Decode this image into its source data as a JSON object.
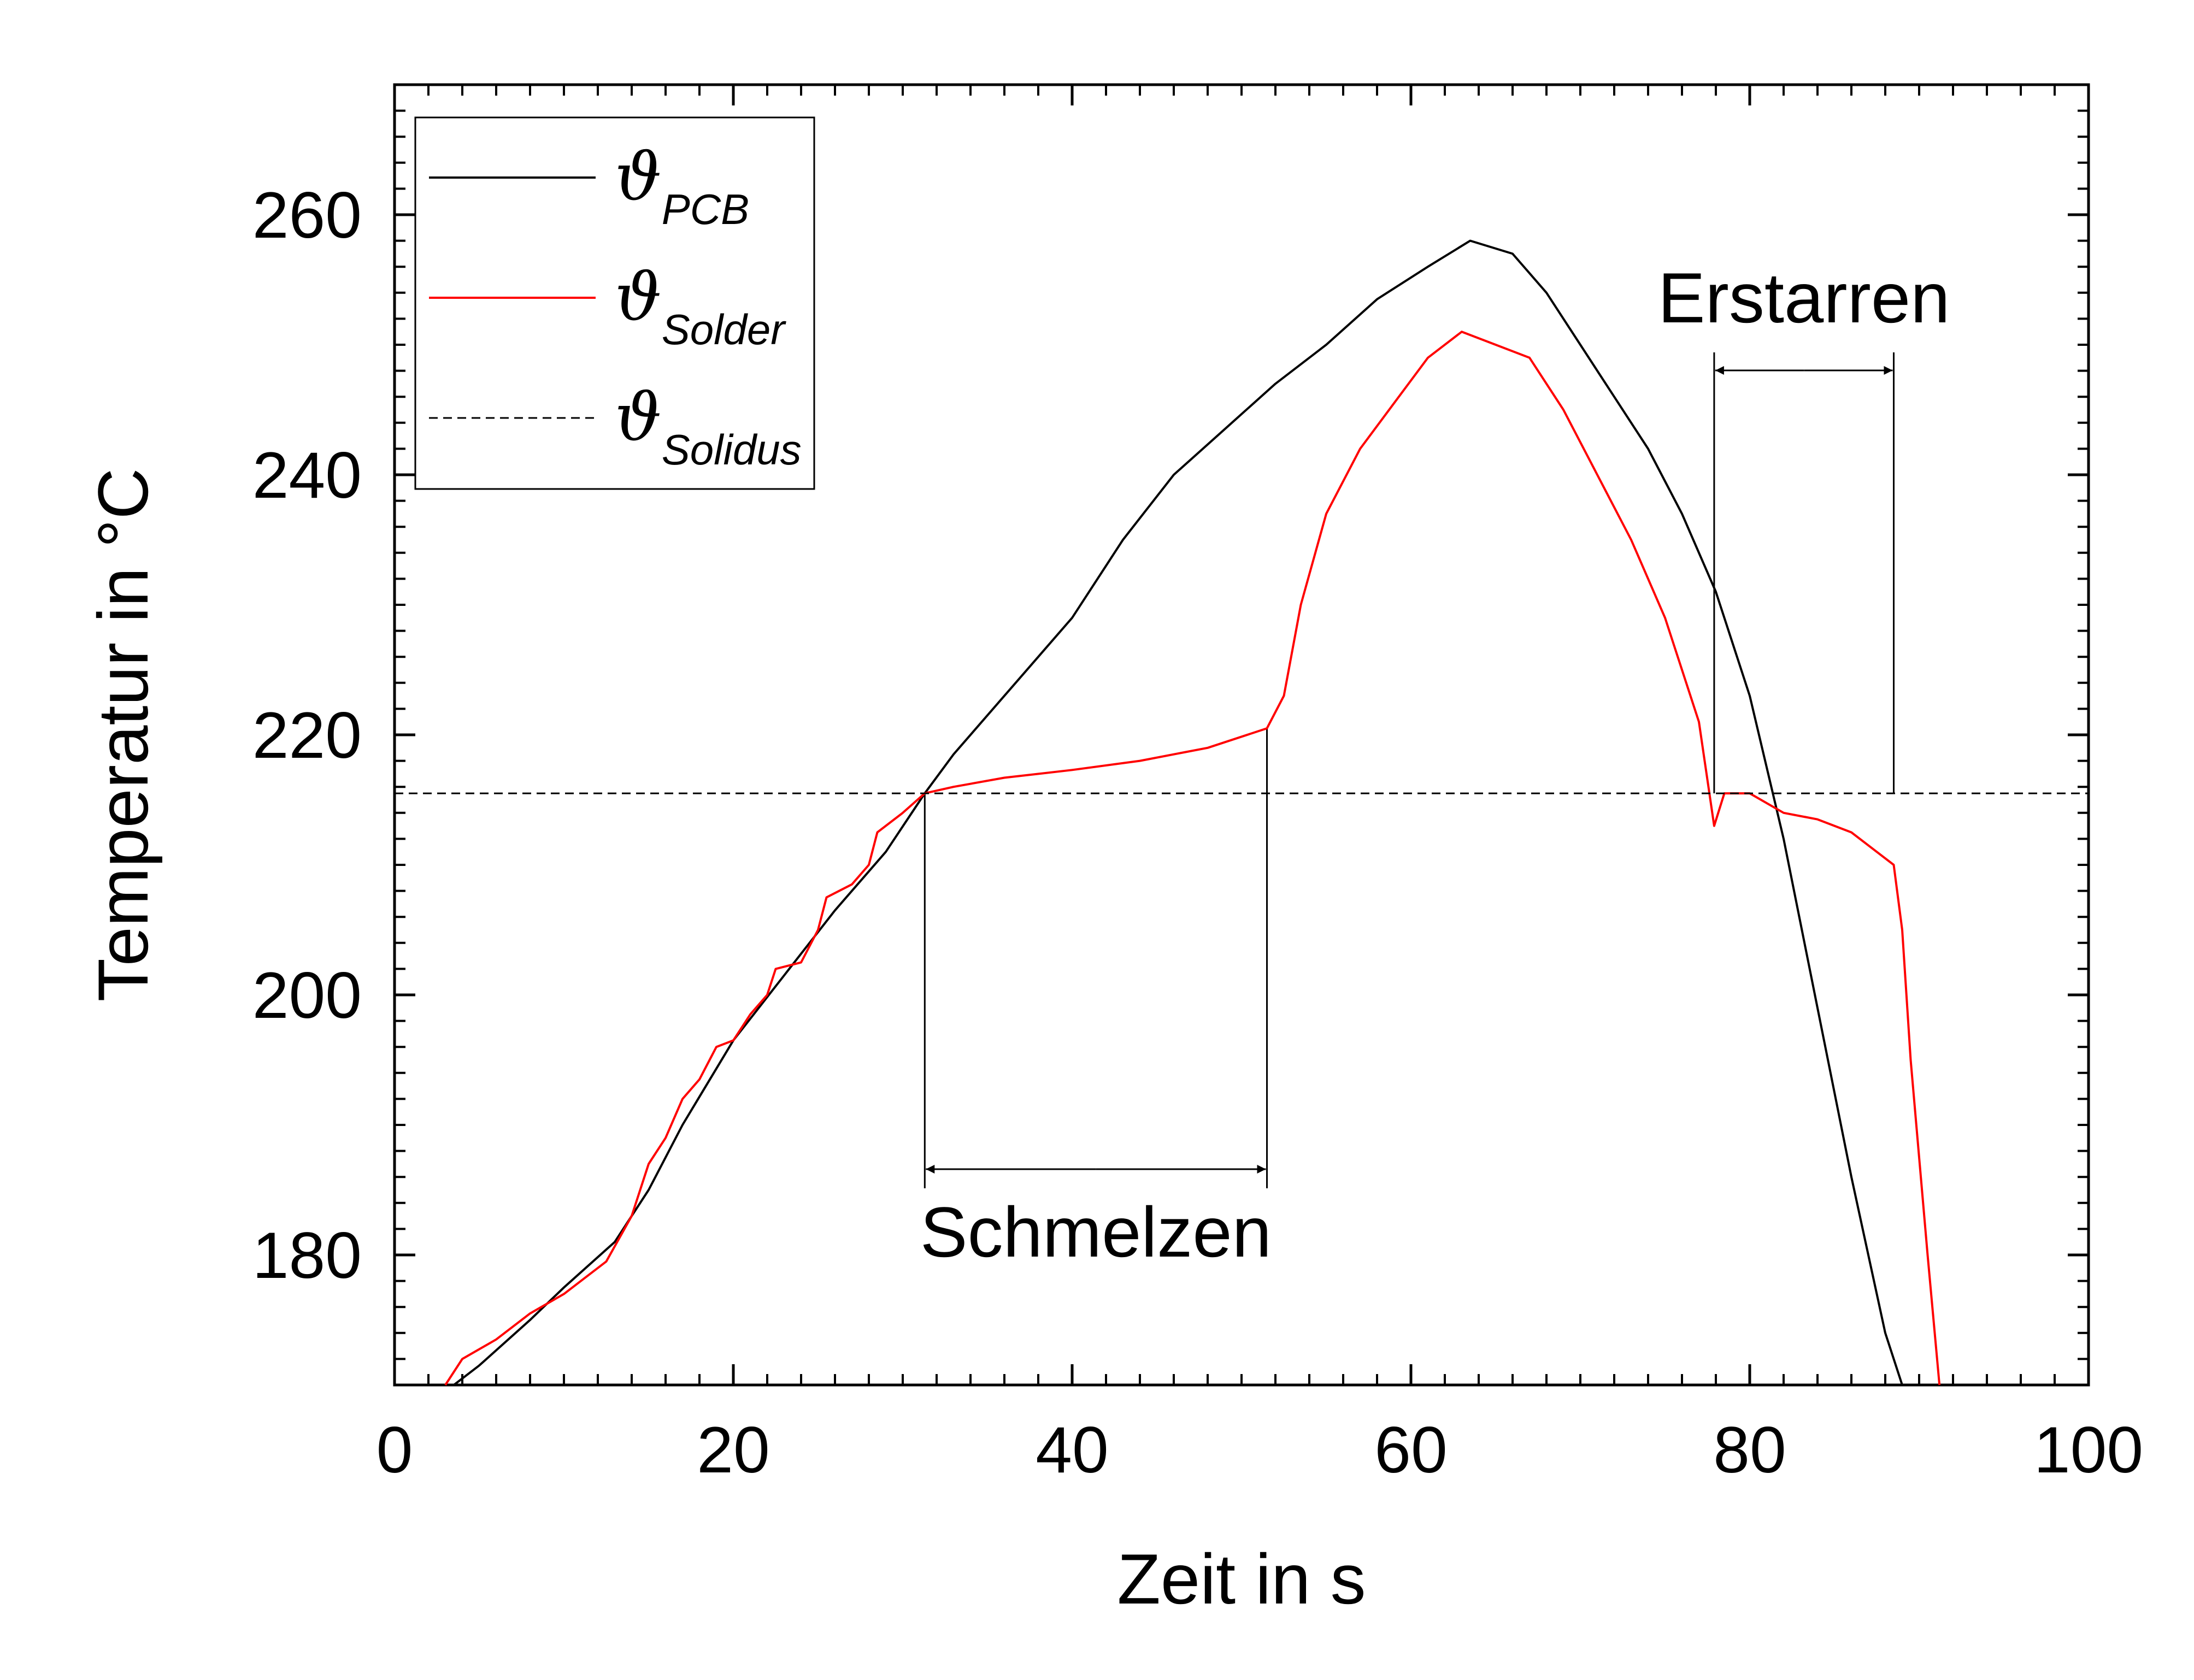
{
  "chart_data": {
    "type": "line",
    "xlabel": "Zeit in s",
    "ylabel": "Temperatur in °C",
    "xlim": [
      0,
      100
    ],
    "ylim": [
      170,
      270
    ],
    "xticks": [
      0,
      20,
      40,
      60,
      80,
      100
    ],
    "yticks": [
      180,
      200,
      220,
      240,
      260
    ],
    "grid": false,
    "legend_position": "top-left",
    "series": [
      {
        "name": "ϑ",
        "subscript": "PCB",
        "color": "#000000",
        "style": "solid",
        "points": [
          [
            3.5,
            170
          ],
          [
            5,
            171.5
          ],
          [
            8,
            175
          ],
          [
            10,
            177.5
          ],
          [
            13,
            181
          ],
          [
            15,
            185
          ],
          [
            17,
            190
          ],
          [
            20,
            196.5
          ],
          [
            23,
            201.5
          ],
          [
            26,
            206.5
          ],
          [
            29,
            211
          ],
          [
            31.3,
            215.5
          ],
          [
            33,
            218.5
          ],
          [
            36,
            223
          ],
          [
            40,
            229
          ],
          [
            43,
            235
          ],
          [
            46,
            240
          ],
          [
            49,
            243.5
          ],
          [
            52,
            247
          ],
          [
            55,
            250
          ],
          [
            58,
            253.5
          ],
          [
            61,
            256
          ],
          [
            63.5,
            258
          ],
          [
            66,
            257
          ],
          [
            68,
            254
          ],
          [
            70,
            250
          ],
          [
            72,
            246
          ],
          [
            74,
            242
          ],
          [
            76,
            237
          ],
          [
            78,
            231
          ],
          [
            80,
            223
          ],
          [
            82,
            212
          ],
          [
            84,
            199
          ],
          [
            86,
            186
          ],
          [
            88,
            174
          ],
          [
            89,
            170
          ]
        ]
      },
      {
        "name": "ϑ",
        "subscript": "Solder",
        "color": "#ff0000",
        "style": "solid",
        "points": [
          [
            3,
            170
          ],
          [
            4,
            172
          ],
          [
            6,
            173.5
          ],
          [
            8,
            175.5
          ],
          [
            10,
            177
          ],
          [
            12.5,
            179.5
          ],
          [
            14,
            183
          ],
          [
            15,
            187
          ],
          [
            16,
            189
          ],
          [
            17,
            192
          ],
          [
            18,
            193.5
          ],
          [
            19,
            196
          ],
          [
            20,
            196.5
          ],
          [
            21,
            198.5
          ],
          [
            22,
            200
          ],
          [
            22.5,
            202
          ],
          [
            24,
            202.5
          ],
          [
            25,
            205
          ],
          [
            25.5,
            207.5
          ],
          [
            27,
            208.5
          ],
          [
            28,
            210
          ],
          [
            28.5,
            212.5
          ],
          [
            30,
            214
          ],
          [
            31.3,
            215.5
          ],
          [
            33,
            216
          ],
          [
            36,
            216.7
          ],
          [
            40,
            217.3
          ],
          [
            44,
            218
          ],
          [
            48,
            219
          ],
          [
            51.5,
            220.5
          ],
          [
            52.5,
            223
          ],
          [
            53.5,
            230
          ],
          [
            55,
            237
          ],
          [
            57,
            242
          ],
          [
            59,
            245.5
          ],
          [
            61,
            249
          ],
          [
            63,
            251
          ],
          [
            65,
            250
          ],
          [
            67,
            249
          ],
          [
            69,
            245
          ],
          [
            71,
            240
          ],
          [
            73,
            235
          ],
          [
            75,
            229
          ],
          [
            77,
            221
          ],
          [
            77.9,
            213
          ],
          [
            78.5,
            215.5
          ],
          [
            80,
            215.5
          ],
          [
            82,
            214
          ],
          [
            84,
            213.5
          ],
          [
            86,
            212.5
          ],
          [
            88.5,
            210
          ],
          [
            89,
            205
          ],
          [
            89.5,
            195
          ],
          [
            90.5,
            180
          ],
          [
            91.2,
            170
          ]
        ]
      },
      {
        "name": "ϑ",
        "subscript": "Solidus",
        "color": "#000000",
        "style": "dashed",
        "points": [
          [
            0,
            215.5
          ],
          [
            100,
            215.5
          ]
        ]
      }
    ],
    "annotations": [
      {
        "label": "Schmelzen",
        "from": 31.3,
        "to": 51.5
      },
      {
        "label": "Erstarren",
        "from": 77.9,
        "to": 88.5
      }
    ]
  }
}
